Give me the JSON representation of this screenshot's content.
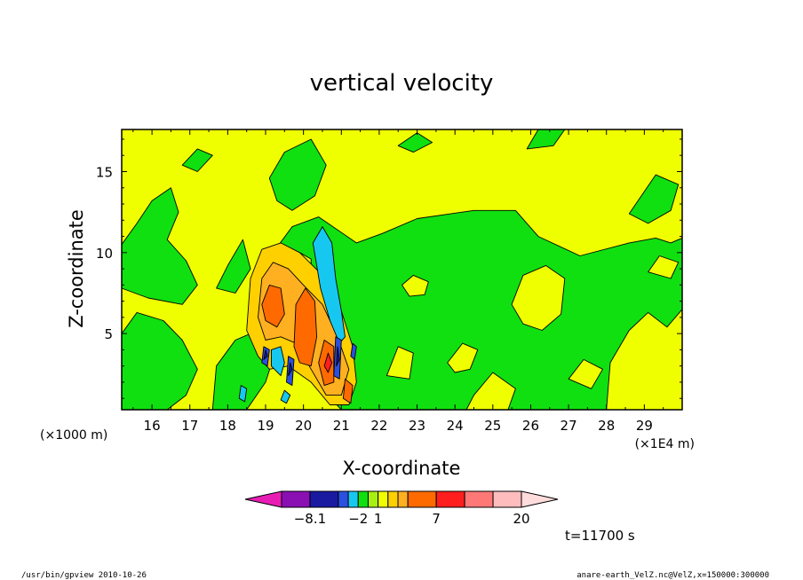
{
  "chart_data": {
    "type": "heatmap",
    "title": "vertical velocity",
    "xlabel": "X-coordinate",
    "ylabel": "Z-coordinate",
    "x_units_label": "(×1E4 m)",
    "y_units_label": "(×1000 m)",
    "xlim": [
      15.2,
      30.0
    ],
    "ylim": [
      0.3,
      17.6
    ],
    "x_ticks": [
      "16",
      "17",
      "18",
      "19",
      "20",
      "21",
      "22",
      "23",
      "24",
      "25",
      "26",
      "27",
      "28",
      "29"
    ],
    "y_ticks": [
      "5",
      "10",
      "15"
    ],
    "time_label": "t=11700 s",
    "colorbar": {
      "colors": [
        "#e81eb4",
        "#8a10b4",
        "#1a1aa0",
        "#2a50e0",
        "#16c8f0",
        "#10e010",
        "#a8f010",
        "#f0ff00",
        "#ffd000",
        "#ffb020",
        "#ff6a00",
        "#ff1e1e",
        "#ff7878",
        "#ffbcbc",
        "#ffdcdc"
      ],
      "labels": [
        {
          "text": "−8.1",
          "at_boundary": 1
        },
        {
          "text": "−2",
          "at_boundary": 4
        },
        {
          "text": "1",
          "at_boundary": 6
        },
        {
          "text": "7",
          "at_boundary": 10
        },
        {
          "text": "20",
          "at_boundary": 14
        }
      ]
    },
    "regions": [
      {
        "level": "green",
        "color": "#10e010",
        "pts": [
          [
            15.2,
            10.5
          ],
          [
            15.6,
            11.8
          ],
          [
            16.0,
            13.2
          ],
          [
            16.5,
            14.0
          ],
          [
            16.7,
            12.5
          ],
          [
            16.4,
            10.8
          ],
          [
            16.9,
            9.5
          ],
          [
            17.2,
            8.0
          ],
          [
            16.8,
            6.8
          ],
          [
            15.9,
            7.2
          ],
          [
            15.2,
            7.8
          ]
        ]
      },
      {
        "level": "green",
        "color": "#10e010",
        "pts": [
          [
            15.2,
            0.3
          ],
          [
            15.2,
            5.0
          ],
          [
            15.6,
            6.3
          ],
          [
            16.3,
            5.8
          ],
          [
            16.8,
            4.6
          ],
          [
            17.2,
            2.8
          ],
          [
            16.9,
            1.2
          ],
          [
            16.4,
            0.3
          ]
        ]
      },
      {
        "level": "green",
        "color": "#10e010",
        "pts": [
          [
            17.6,
            0.3
          ],
          [
            17.7,
            3.0
          ],
          [
            18.2,
            4.6
          ],
          [
            18.8,
            5.2
          ],
          [
            19.3,
            4.2
          ],
          [
            19.0,
            2.0
          ],
          [
            18.5,
            0.3
          ]
        ]
      },
      {
        "level": "green",
        "color": "#10e010",
        "pts": [
          [
            17.7,
            7.8
          ],
          [
            18.0,
            9.2
          ],
          [
            18.4,
            10.8
          ],
          [
            18.6,
            9.0
          ],
          [
            18.2,
            7.5
          ]
        ]
      },
      {
        "level": "green",
        "color": "#10e010",
        "pts": [
          [
            19.1,
            14.6
          ],
          [
            19.5,
            16.2
          ],
          [
            20.2,
            17.0
          ],
          [
            20.6,
            15.4
          ],
          [
            20.3,
            13.5
          ],
          [
            19.7,
            12.6
          ],
          [
            19.3,
            13.2
          ]
        ]
      },
      {
        "level": "green",
        "color": "#10e010",
        "pts": [
          [
            19.2,
            10.0
          ],
          [
            19.7,
            11.6
          ],
          [
            20.4,
            12.2
          ],
          [
            20.9,
            11.4
          ],
          [
            21.4,
            10.6
          ],
          [
            22.1,
            11.2
          ],
          [
            23.0,
            12.1
          ],
          [
            24.5,
            12.6
          ],
          [
            25.6,
            12.6
          ],
          [
            26.2,
            11.0
          ],
          [
            27.3,
            9.8
          ],
          [
            28.6,
            10.6
          ],
          [
            29.3,
            10.9
          ],
          [
            29.7,
            10.6
          ],
          [
            30.0,
            10.9
          ],
          [
            30.0,
            6.5
          ],
          [
            29.6,
            5.4
          ],
          [
            29.1,
            6.3
          ],
          [
            28.6,
            5.2
          ],
          [
            28.1,
            3.2
          ],
          [
            28.0,
            0.3
          ],
          [
            25.4,
            0.3
          ],
          [
            25.6,
            1.6
          ],
          [
            25.0,
            2.6
          ],
          [
            24.5,
            1.2
          ],
          [
            24.3,
            0.3
          ],
          [
            21.0,
            0.3
          ],
          [
            20.4,
            1.8
          ],
          [
            19.9,
            4.0
          ],
          [
            19.5,
            6.8
          ],
          [
            19.3,
            8.4
          ]
        ]
      },
      {
        "level": "yellow-hole",
        "color": "#f0ff00",
        "pts": [
          [
            22.6,
            8.0
          ],
          [
            22.9,
            8.6
          ],
          [
            23.3,
            8.2
          ],
          [
            23.2,
            7.4
          ],
          [
            22.8,
            7.3
          ]
        ]
      },
      {
        "level": "yellow-hole",
        "color": "#f0ff00",
        "pts": [
          [
            25.5,
            6.8
          ],
          [
            25.8,
            8.6
          ],
          [
            26.4,
            9.2
          ],
          [
            26.9,
            8.4
          ],
          [
            26.8,
            6.2
          ],
          [
            26.3,
            5.2
          ],
          [
            25.8,
            5.6
          ]
        ]
      },
      {
        "level": "yellow-hole",
        "color": "#f0ff00",
        "pts": [
          [
            29.1,
            8.8
          ],
          [
            29.4,
            9.8
          ],
          [
            29.9,
            9.4
          ],
          [
            29.7,
            8.4
          ]
        ]
      },
      {
        "level": "yellow-hole",
        "color": "#f0ff00",
        "pts": [
          [
            23.8,
            3.2
          ],
          [
            24.2,
            4.4
          ],
          [
            24.6,
            4.0
          ],
          [
            24.4,
            2.8
          ],
          [
            24.0,
            2.6
          ]
        ]
      },
      {
        "level": "yellow-hole",
        "color": "#f0ff00",
        "pts": [
          [
            22.2,
            2.4
          ],
          [
            22.5,
            4.2
          ],
          [
            22.9,
            3.8
          ],
          [
            22.8,
            2.2
          ]
        ]
      },
      {
        "level": "yellow-hole",
        "color": "#f0ff00",
        "pts": [
          [
            27.0,
            2.2
          ],
          [
            27.4,
            3.4
          ],
          [
            27.9,
            2.8
          ],
          [
            27.6,
            1.6
          ]
        ]
      },
      {
        "level": "yellow",
        "color": "#f0ff00",
        "pts": [
          [
            19.55,
            9.2
          ],
          [
            19.9,
            10.0
          ],
          [
            20.2,
            9.6
          ],
          [
            20.2,
            8.4
          ],
          [
            19.8,
            8.0
          ]
        ]
      },
      {
        "level": "green",
        "color": "#10e010",
        "pts": [
          [
            28.6,
            12.4
          ],
          [
            29.3,
            14.8
          ],
          [
            29.9,
            14.2
          ],
          [
            29.7,
            12.6
          ],
          [
            29.1,
            11.8
          ]
        ]
      },
      {
        "level": "green",
        "color": "#10e010",
        "pts": [
          [
            25.9,
            16.4
          ],
          [
            26.2,
            17.6
          ],
          [
            26.9,
            17.6
          ],
          [
            26.6,
            16.6
          ]
        ]
      },
      {
        "level": "green",
        "color": "#10e010",
        "pts": [
          [
            16.8,
            15.4
          ],
          [
            17.2,
            16.4
          ],
          [
            17.6,
            16.0
          ],
          [
            17.2,
            15.0
          ]
        ]
      },
      {
        "level": "green",
        "color": "#10e010",
        "pts": [
          [
            22.5,
            16.6
          ],
          [
            23.0,
            17.4
          ],
          [
            23.4,
            16.8
          ],
          [
            22.9,
            16.2
          ]
        ]
      },
      {
        "level": "orange-light",
        "color": "#ffd000",
        "pts": [
          [
            18.5,
            5.2
          ],
          [
            18.6,
            8.4
          ],
          [
            18.9,
            10.2
          ],
          [
            19.4,
            10.6
          ],
          [
            19.9,
            10.0
          ],
          [
            20.5,
            8.6
          ],
          [
            21.0,
            6.4
          ],
          [
            21.3,
            4.2
          ],
          [
            21.4,
            2.0
          ],
          [
            21.2,
            0.6
          ],
          [
            20.7,
            0.6
          ],
          [
            20.2,
            2.0
          ],
          [
            19.6,
            3.0
          ],
          [
            19.1,
            2.8
          ],
          [
            18.8,
            3.6
          ]
        ]
      },
      {
        "level": "orange-mid",
        "color": "#ffb020",
        "pts": [
          [
            18.8,
            6.0
          ],
          [
            18.9,
            8.4
          ],
          [
            19.2,
            9.4
          ],
          [
            19.6,
            9.0
          ],
          [
            20.0,
            8.0
          ],
          [
            20.5,
            6.8
          ],
          [
            20.9,
            4.8
          ],
          [
            21.2,
            2.8
          ],
          [
            21.0,
            1.2
          ],
          [
            20.6,
            1.2
          ],
          [
            20.2,
            2.8
          ],
          [
            19.8,
            4.4
          ],
          [
            19.4,
            4.8
          ],
          [
            19.0,
            4.6
          ]
        ]
      },
      {
        "level": "orange",
        "color": "#ff6a00",
        "pts": [
          [
            18.9,
            6.8
          ],
          [
            19.1,
            8.0
          ],
          [
            19.4,
            7.8
          ],
          [
            19.5,
            6.2
          ],
          [
            19.3,
            5.4
          ],
          [
            19.0,
            5.8
          ]
        ]
      },
      {
        "level": "orange",
        "color": "#ff6a00",
        "pts": [
          [
            19.75,
            4.2
          ],
          [
            19.8,
            6.8
          ],
          [
            20.05,
            7.8
          ],
          [
            20.3,
            7.0
          ],
          [
            20.35,
            4.8
          ],
          [
            20.2,
            3.0
          ],
          [
            19.9,
            3.2
          ]
        ]
      },
      {
        "level": "orange",
        "color": "#ff6a00",
        "pts": [
          [
            20.4,
            3.2
          ],
          [
            20.55,
            4.6
          ],
          [
            20.8,
            4.2
          ],
          [
            20.8,
            2.0
          ],
          [
            20.55,
            1.8
          ]
        ]
      },
      {
        "level": "orange",
        "color": "#ff6a00",
        "pts": [
          [
            21.05,
            1.0
          ],
          [
            21.1,
            2.2
          ],
          [
            21.3,
            1.8
          ],
          [
            21.25,
            0.7
          ]
        ]
      },
      {
        "level": "red",
        "color": "#ff1e1e",
        "pts": [
          [
            20.55,
            3.0
          ],
          [
            20.65,
            3.8
          ],
          [
            20.75,
            3.2
          ],
          [
            20.65,
            2.6
          ]
        ]
      },
      {
        "level": "cyan",
        "color": "#16c8f0",
        "pts": [
          [
            20.25,
            10.6
          ],
          [
            20.5,
            11.6
          ],
          [
            20.75,
            10.6
          ],
          [
            20.85,
            8.4
          ],
          [
            21.0,
            6.4
          ],
          [
            21.1,
            4.8
          ],
          [
            20.95,
            4.4
          ],
          [
            20.7,
            5.8
          ],
          [
            20.45,
            7.8
          ]
        ]
      },
      {
        "level": "cyan",
        "color": "#16c8f0",
        "pts": [
          [
            19.15,
            4.0
          ],
          [
            19.15,
            3.0
          ],
          [
            19.4,
            2.4
          ],
          [
            19.5,
            3.2
          ],
          [
            19.4,
            4.2
          ]
        ]
      },
      {
        "level": "cyan",
        "color": "#16c8f0",
        "pts": [
          [
            19.4,
            0.9
          ],
          [
            19.5,
            1.5
          ],
          [
            19.65,
            1.2
          ],
          [
            19.55,
            0.7
          ]
        ]
      },
      {
        "level": "cyan",
        "color": "#16c8f0",
        "pts": [
          [
            18.3,
            1.0
          ],
          [
            18.35,
            1.8
          ],
          [
            18.5,
            1.6
          ],
          [
            18.45,
            0.8
          ]
        ]
      },
      {
        "level": "blue",
        "color": "#2a50e0",
        "pts": [
          [
            18.9,
            3.2
          ],
          [
            18.95,
            4.2
          ],
          [
            19.1,
            4.0
          ],
          [
            19.05,
            3.0
          ]
        ]
      },
      {
        "level": "blue",
        "color": "#2a50e0",
        "pts": [
          [
            19.55,
            2.0
          ],
          [
            19.6,
            3.6
          ],
          [
            19.75,
            3.4
          ],
          [
            19.7,
            1.8
          ]
        ]
      },
      {
        "level": "blue",
        "color": "#2a50e0",
        "pts": [
          [
            20.8,
            2.4
          ],
          [
            20.85,
            4.8
          ],
          [
            21.0,
            4.6
          ],
          [
            20.95,
            2.2
          ]
        ]
      },
      {
        "level": "blue",
        "color": "#2a50e0",
        "pts": [
          [
            21.25,
            3.6
          ],
          [
            21.3,
            4.4
          ],
          [
            21.4,
            4.2
          ],
          [
            21.35,
            3.4
          ]
        ]
      },
      {
        "level": "darkblue",
        "color": "#1a1aa0",
        "pts": [
          [
            18.95,
            3.4
          ],
          [
            19.0,
            4.0
          ],
          [
            19.05,
            3.6
          ]
        ]
      },
      {
        "level": "darkblue",
        "color": "#1a1aa0",
        "pts": [
          [
            19.6,
            2.4
          ],
          [
            19.65,
            3.2
          ],
          [
            19.7,
            2.8
          ]
        ]
      },
      {
        "level": "darkblue",
        "color": "#1a1aa0",
        "pts": [
          [
            20.87,
            3.0
          ],
          [
            20.9,
            4.2
          ],
          [
            20.95,
            3.4
          ]
        ]
      }
    ]
  },
  "footer": {
    "left": "/usr/bin/gpview   2010-10-26",
    "right": "anare-earth_VelZ.nc@VelZ,x=150000:300000"
  }
}
